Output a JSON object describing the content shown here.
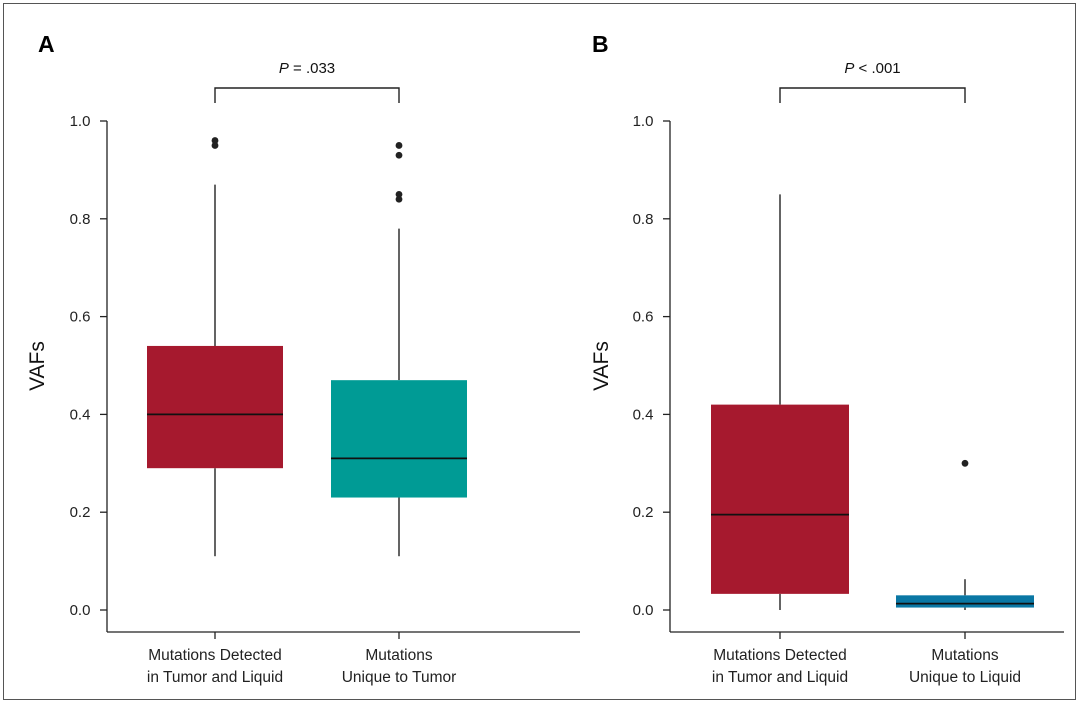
{
  "chart_data": [
    {
      "type": "box",
      "panel_label": "A",
      "ylabel": "VAFs",
      "ylim": [
        0.0,
        1.0
      ],
      "yticks": [
        "0.0",
        "0.2",
        "0.4",
        "0.6",
        "0.8",
        "1.0"
      ],
      "categories": [
        {
          "lines": [
            "Mutations Detected",
            "in Tumor and Liquid"
          ],
          "min": 0.11,
          "q1": 0.29,
          "median": 0.4,
          "q3": 0.54,
          "max": 0.87,
          "outliers": [
            0.95,
            0.96
          ],
          "color": "#A6192E"
        },
        {
          "lines": [
            "Mutations",
            "Unique to Tumor"
          ],
          "min": 0.11,
          "q1": 0.23,
          "median": 0.31,
          "q3": 0.47,
          "max": 0.78,
          "outliers": [
            0.84,
            0.85,
            0.93,
            0.95
          ],
          "color": "#009B95"
        }
      ],
      "significance": {
        "p_prefix": "P",
        "p_rest": " = .033"
      }
    },
    {
      "type": "box",
      "panel_label": "B",
      "ylabel": "VAFs",
      "ylim": [
        0.0,
        1.0
      ],
      "yticks": [
        "0.0",
        "0.2",
        "0.4",
        "0.6",
        "0.8",
        "1.0"
      ],
      "categories": [
        {
          "lines": [
            "Mutations Detected",
            "in Tumor and Liquid"
          ],
          "min": 0.0,
          "q1": 0.033,
          "median": 0.195,
          "q3": 0.42,
          "max": 0.85,
          "outliers": [],
          "color": "#A6192E"
        },
        {
          "lines": [
            "Mutations",
            "Unique to Liquid"
          ],
          "min": 0.0,
          "q1": 0.005,
          "median": 0.013,
          "q3": 0.03,
          "max": 0.063,
          "outliers": [
            0.3
          ],
          "color": "#0A77A4"
        }
      ],
      "significance": {
        "p_prefix": "P",
        "p_rest": " < .001"
      }
    }
  ]
}
